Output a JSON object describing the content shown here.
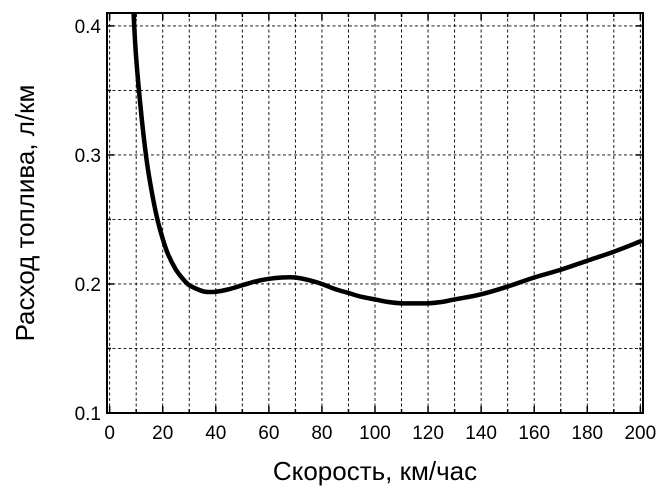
{
  "chart_data": {
    "type": "line",
    "title": "",
    "xlabel": "Скорость, км/час",
    "ylabel": "Расход топлива, л/км",
    "xlim": [
      -1,
      201
    ],
    "ylim": [
      0.1,
      0.41
    ],
    "grid": true,
    "x_ticks": [
      0,
      20,
      40,
      60,
      80,
      100,
      120,
      140,
      160,
      180,
      200
    ],
    "x_tick_labels": [
      "0",
      "20",
      "40",
      "60",
      "80",
      "100",
      "120",
      "140",
      "160",
      "180",
      "200"
    ],
    "y_ticks": [
      0.1,
      0.2,
      0.3,
      0.4
    ],
    "y_tick_labels": [
      "0.1",
      "0.2",
      "0.3",
      "0.4"
    ],
    "x_minor_step": 10,
    "y_minor_step": 0.05,
    "series": [
      {
        "color": "#000000",
        "x": [
          9,
          10,
          12,
          14,
          16,
          18,
          20,
          22,
          25,
          28,
          30,
          33,
          36,
          40,
          45,
          50,
          55,
          60,
          65,
          70,
          75,
          80,
          85,
          90,
          95,
          100,
          105,
          110,
          115,
          120,
          125,
          130,
          140,
          150,
          160,
          170,
          180,
          190,
          200
        ],
        "y": [
          0.41,
          0.375,
          0.33,
          0.295,
          0.27,
          0.25,
          0.235,
          0.223,
          0.211,
          0.203,
          0.199,
          0.196,
          0.194,
          0.194,
          0.196,
          0.199,
          0.202,
          0.204,
          0.205,
          0.205,
          0.203,
          0.2,
          0.196,
          0.193,
          0.19,
          0.188,
          0.186,
          0.185,
          0.185,
          0.185,
          0.186,
          0.188,
          0.192,
          0.198,
          0.205,
          0.211,
          0.218,
          0.225,
          0.233
        ]
      }
    ]
  }
}
